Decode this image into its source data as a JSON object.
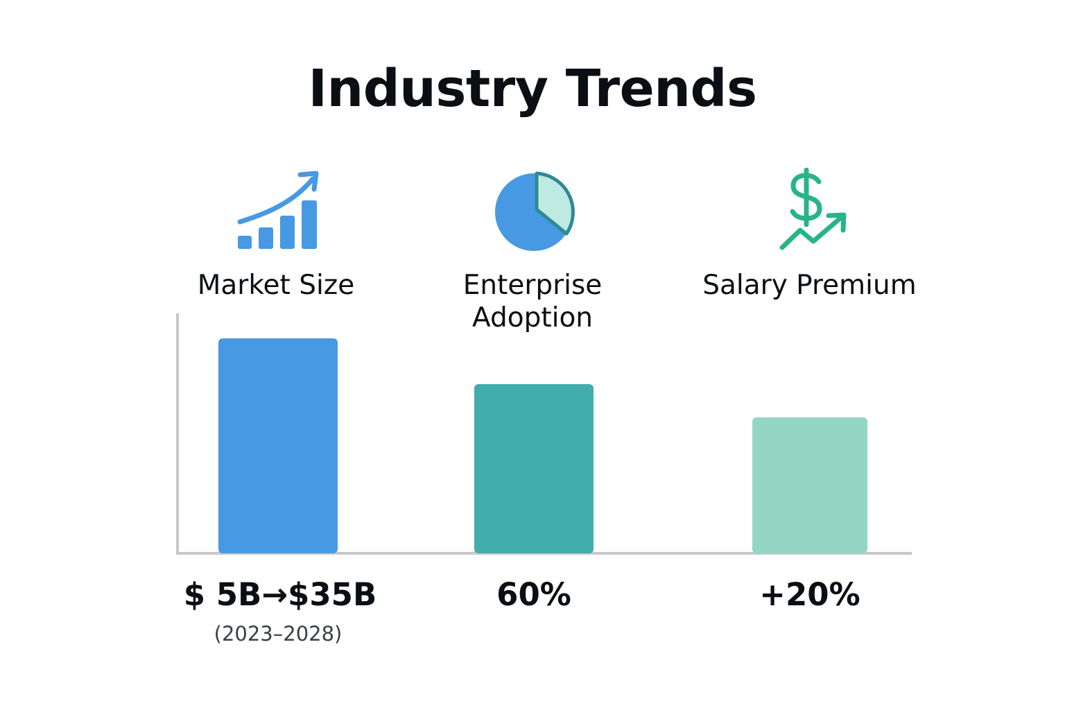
{
  "title": "Industry Trends",
  "chart_data": {
    "type": "bar",
    "categories": [
      "Market Size",
      "Enterprise\nAdoption",
      "Salary Premium"
    ],
    "value_labels": [
      "$ 5B→$35B",
      "60%",
      "+20%"
    ],
    "annotations": [
      "(2023–2028)"
    ],
    "icons": [
      "growth-chart-icon",
      "pie-chart-icon",
      "dollar-trend-icon"
    ],
    "colors": [
      "#4699e2",
      "#41adad",
      "#94d6c4"
    ],
    "axis_color": "#c8c8c8",
    "grid": false,
    "legend": "none"
  }
}
